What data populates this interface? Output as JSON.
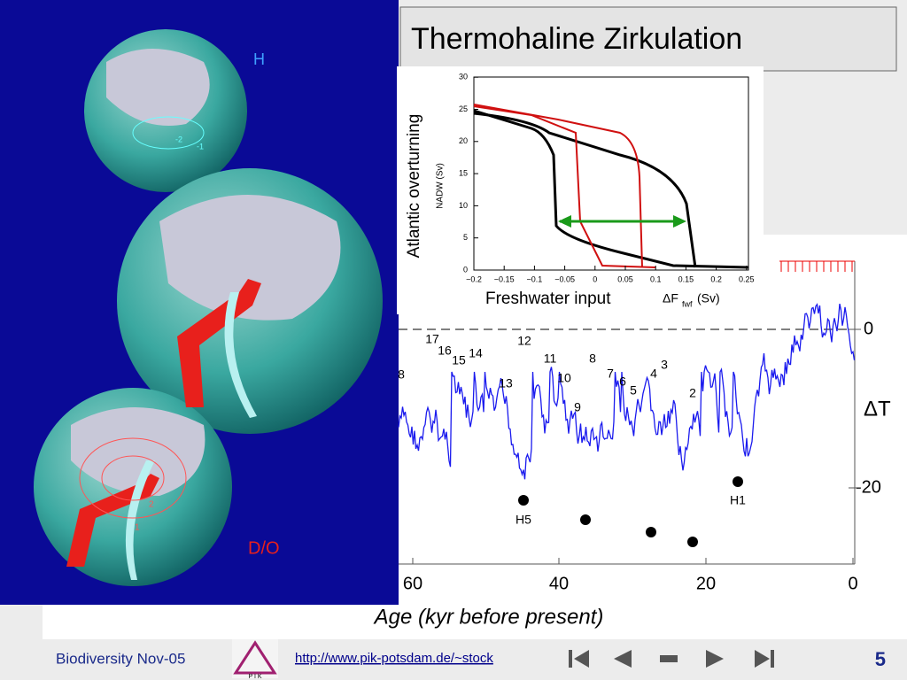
{
  "slide": {
    "title": "Thermohaline Zirkulation"
  },
  "globes": {
    "top_label": "H",
    "bottom_label": "D/O",
    "contour_top": [
      "-2",
      "-1"
    ],
    "contour_bottom": [
      "2",
      "1"
    ]
  },
  "inset": {
    "y_label": "Atlantic overturning",
    "y_sublabel": "NADW (Sv)",
    "x_label": "Freshwater input",
    "x_sublabel": "ΔF",
    "x_subscript": "fwf",
    "x_unit": "(Sv)",
    "xticks": [
      "−0.2",
      "−0.15",
      "−0.1",
      "−0.05",
      "0",
      "0.05",
      "0.1",
      "0.15",
      "0.2",
      "0.25"
    ],
    "yticks": [
      "0",
      "5",
      "10",
      "15",
      "20",
      "25",
      "30"
    ]
  },
  "core": {
    "x_label": "Age (kyr before present)",
    "xticks": [
      "60",
      "40",
      "20",
      "0"
    ],
    "yticks": [
      "0",
      "-20"
    ],
    "y_label": "ΔT",
    "events": [
      "8",
      "17",
      "16",
      "15",
      "14",
      "12",
      "11",
      "8",
      "13",
      "10",
      "7",
      "6",
      "5",
      "4",
      "3",
      "9",
      "2"
    ],
    "heinrich": [
      "H5",
      "H1"
    ]
  },
  "footer": {
    "left": "Biodiversity Nov-05",
    "logo": "P I K",
    "url": "http://www.pik-potsdam.de/~stock",
    "page": "5"
  }
}
